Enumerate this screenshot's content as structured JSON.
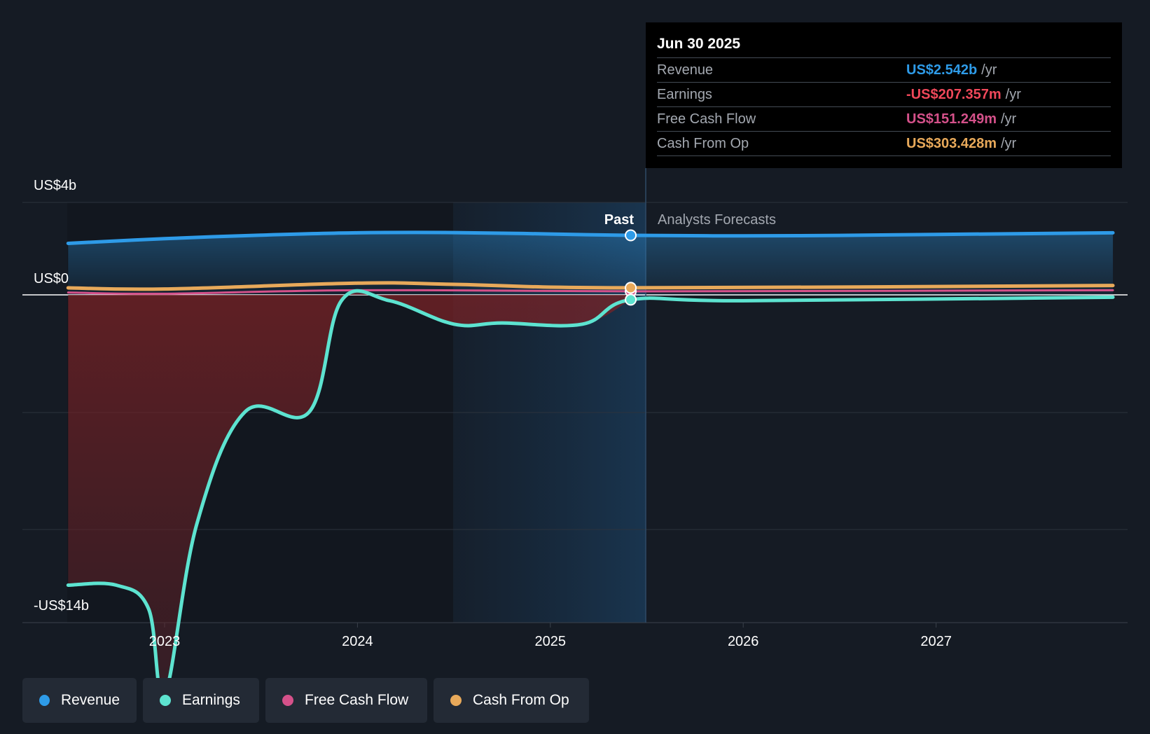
{
  "chart_data": {
    "type": "line",
    "y_axis_labels": [
      "US$4b",
      "US$0",
      "-US$14b"
    ],
    "ylim": [
      -14,
      4
    ],
    "y_unit": "US$ billions",
    "x_ticks": [
      "2023",
      "2024",
      "2025",
      "2026",
      "2027"
    ],
    "divider_labels": {
      "past": "Past",
      "forecast": "Analysts Forecasts"
    },
    "series": [
      {
        "name": "Revenue",
        "color": "#2e9be8",
        "points": [
          [
            "2022-07",
            2.2
          ],
          [
            "2023-01",
            2.4
          ],
          [
            "2023-07",
            2.55
          ],
          [
            "2024-01",
            2.65
          ],
          [
            "2024-07",
            2.66
          ],
          [
            "2025-01",
            2.6
          ],
          [
            "2025-06",
            2.542
          ],
          [
            "2026-01",
            2.52
          ],
          [
            "2026-07",
            2.54
          ],
          [
            "2027-01",
            2.58
          ],
          [
            "2027-12",
            2.65
          ]
        ]
      },
      {
        "name": "Earnings",
        "color": "#5de3d0",
        "points": [
          [
            "2022-07",
            -12.4
          ],
          [
            "2022-10",
            -12.4
          ],
          [
            "2022-12",
            -13.4
          ],
          [
            "2023-01",
            -17.1
          ],
          [
            "2023-03",
            -9.8
          ],
          [
            "2023-06",
            -5.0
          ],
          [
            "2023-10",
            -5.0
          ],
          [
            "2023-12",
            -0.25
          ],
          [
            "2024-03",
            -0.25
          ],
          [
            "2024-07",
            -1.25
          ],
          [
            "2024-10",
            -1.2
          ],
          [
            "2025-03",
            -1.25
          ],
          [
            "2025-06",
            -0.207
          ],
          [
            "2026-01",
            -0.25
          ],
          [
            "2027-12",
            -0.1
          ]
        ]
      },
      {
        "name": "Free Cash Flow",
        "color": "#d5518a",
        "points": [
          [
            "2022-07",
            0.1
          ],
          [
            "2023-01",
            0.05
          ],
          [
            "2024-01",
            0.2
          ],
          [
            "2025-06",
            0.151
          ],
          [
            "2027-12",
            0.2
          ]
        ]
      },
      {
        "name": "Cash From Op",
        "color": "#e8a95a",
        "points": [
          [
            "2022-07",
            0.3
          ],
          [
            "2023-01",
            0.25
          ],
          [
            "2024-01",
            0.5
          ],
          [
            "2024-07",
            0.45
          ],
          [
            "2025-06",
            0.303
          ],
          [
            "2027-12",
            0.4
          ]
        ]
      }
    ]
  },
  "tooltip": {
    "date": "Jun 30 2025",
    "rows": [
      {
        "label": "Revenue",
        "value": "US$2.542b",
        "unit": "/yr",
        "color": "#2e9be8"
      },
      {
        "label": "Earnings",
        "value": "-US$207.357m",
        "unit": "/yr",
        "color": "#f0485a"
      },
      {
        "label": "Free Cash Flow",
        "value": "US$151.249m",
        "unit": "/yr",
        "color": "#d5518a"
      },
      {
        "label": "Cash From Op",
        "value": "US$303.428m",
        "unit": "/yr",
        "color": "#e8a95a"
      }
    ]
  },
  "legend": [
    {
      "label": "Revenue",
      "color": "#2e9be8"
    },
    {
      "label": "Earnings",
      "color": "#5de3d0"
    },
    {
      "label": "Free Cash Flow",
      "color": "#d5518a"
    },
    {
      "label": "Cash From Op",
      "color": "#e8a95a"
    }
  ]
}
